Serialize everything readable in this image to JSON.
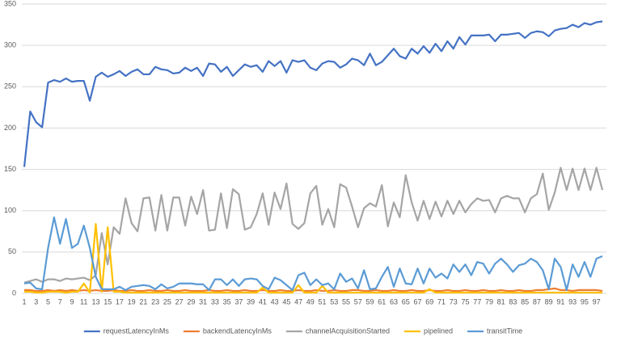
{
  "chart_data": {
    "type": "line",
    "categories": [
      1,
      null,
      3,
      null,
      5,
      null,
      7,
      null,
      9,
      null,
      11,
      null,
      13,
      null,
      15,
      null,
      17,
      null,
      19,
      null,
      21,
      null,
      23,
      null,
      25,
      null,
      27,
      null,
      29,
      null,
      31,
      null,
      33,
      null,
      35,
      null,
      37,
      null,
      39,
      null,
      41,
      null,
      43,
      null,
      45,
      null,
      47,
      null,
      49,
      null,
      51,
      null,
      53,
      null,
      55,
      null,
      57,
      null,
      59,
      null,
      61,
      null,
      63,
      null,
      65,
      null,
      67,
      null,
      69,
      null,
      71,
      null,
      73,
      null,
      75,
      null,
      77,
      null,
      79,
      null,
      81,
      null,
      83,
      null,
      85,
      null,
      87,
      null,
      89,
      null,
      91,
      null,
      93,
      null,
      95,
      null,
      97,
      null
    ],
    "ylim": [
      0,
      350
    ],
    "yticks": [
      0,
      50,
      100,
      150,
      200,
      250,
      300,
      350
    ],
    "grid": true,
    "legend": "bottom",
    "series": [
      {
        "name": "requestLatencyInMs",
        "color": "#4472c4",
        "values": [
          153,
          220,
          207,
          201,
          255,
          258,
          256,
          260,
          256,
          257,
          257,
          233,
          262,
          267,
          262,
          265,
          269,
          263,
          268,
          271,
          265,
          265,
          274,
          271,
          270,
          266,
          267,
          273,
          269,
          273,
          263,
          278,
          277,
          268,
          274,
          263,
          270,
          277,
          274,
          276,
          268,
          281,
          275,
          281,
          267,
          282,
          280,
          282,
          273,
          270,
          278,
          281,
          280,
          273,
          277,
          284,
          282,
          276,
          290,
          276,
          280,
          288,
          296,
          287,
          284,
          296,
          290,
          299,
          291,
          302,
          293,
          305,
          296,
          310,
          301,
          312,
          312,
          312,
          313,
          305,
          313,
          313,
          314,
          315,
          309,
          315,
          317,
          316,
          311,
          318,
          320,
          321,
          325,
          322,
          327,
          325,
          328,
          329
        ]
      },
      {
        "name": "backendLatencyInMs",
        "color": "#ed7d31",
        "values": [
          4,
          4,
          3,
          3,
          4,
          3,
          4,
          3,
          4,
          3,
          4,
          3,
          4,
          3,
          3,
          4,
          3,
          3,
          4,
          3,
          3,
          4,
          3,
          3,
          4,
          3,
          3,
          4,
          3,
          3,
          3,
          4,
          3,
          3,
          4,
          3,
          3,
          4,
          3,
          3,
          4,
          3,
          3,
          4,
          3,
          3,
          4,
          3,
          3,
          4,
          3,
          3,
          4,
          3,
          3,
          4,
          4,
          3,
          3,
          4,
          3,
          3,
          4,
          3,
          3,
          4,
          3,
          3,
          4,
          3,
          3,
          4,
          3,
          3,
          4,
          3,
          3,
          4,
          3,
          3,
          4,
          3,
          3,
          4,
          3,
          3,
          4,
          4,
          5,
          6,
          4,
          4,
          3,
          4,
          4,
          4,
          4,
          3
        ]
      },
      {
        "name": "channelAcquisitionStarted",
        "color": "#a5a5a5",
        "values": [
          13,
          15,
          17,
          14,
          17,
          17,
          15,
          18,
          17,
          18,
          19,
          16,
          22,
          73,
          35,
          80,
          72,
          115,
          85,
          75,
          115,
          116,
          76,
          119,
          76,
          116,
          116,
          82,
          117,
          96,
          125,
          76,
          77,
          121,
          79,
          126,
          120,
          77,
          80,
          96,
          121,
          83,
          122,
          102,
          133,
          84,
          78,
          85,
          121,
          130,
          83,
          102,
          80,
          132,
          128,
          105,
          80,
          103,
          109,
          105,
          131,
          81,
          110,
          92,
          143,
          110,
          88,
          112,
          90,
          111,
          93,
          112,
          96,
          112,
          98,
          108,
          115,
          112,
          113,
          98,
          115,
          118,
          115,
          115,
          98,
          115,
          120,
          145,
          101,
          122,
          152,
          125,
          151,
          125,
          151,
          125,
          152,
          125
        ]
      },
      {
        "name": "pipelined",
        "color": "#ffc000",
        "values": [
          2,
          2,
          1,
          1,
          2,
          2,
          2,
          1,
          2,
          2,
          12,
          1,
          84,
          2,
          80,
          2,
          2,
          1,
          1,
          1,
          1,
          1,
          1,
          1,
          1,
          1,
          1,
          1,
          1,
          1,
          1,
          1,
          1,
          1,
          1,
          1,
          1,
          1,
          1,
          1,
          7,
          1,
          1,
          1,
          1,
          1,
          10,
          1,
          1,
          1,
          9,
          1,
          1,
          1,
          1,
          1,
          1,
          1,
          1,
          1,
          1,
          1,
          1,
          1,
          1,
          1,
          1,
          1,
          5,
          1,
          1,
          1,
          1,
          1,
          1,
          1,
          1,
          1,
          1,
          1,
          1,
          1,
          1,
          1,
          1,
          1,
          1,
          1,
          1,
          1,
          1,
          1,
          1,
          1,
          1,
          1,
          1,
          1
        ]
      },
      {
        "name": "transitTime",
        "color": "#5b9bd5",
        "values": [
          12,
          13,
          6,
          5,
          55,
          92,
          60,
          90,
          55,
          60,
          82,
          55,
          20,
          5,
          5,
          5,
          8,
          4,
          8,
          9,
          10,
          9,
          5,
          11,
          6,
          8,
          12,
          12,
          12,
          11,
          11,
          4,
          17,
          17,
          10,
          17,
          9,
          17,
          18,
          17,
          9,
          5,
          19,
          16,
          10,
          4,
          22,
          25,
          10,
          17,
          10,
          12,
          5,
          24,
          14,
          18,
          6,
          28,
          5,
          6,
          20,
          32,
          8,
          30,
          12,
          11,
          30,
          12,
          30,
          19,
          24,
          18,
          35,
          26,
          35,
          22,
          38,
          36,
          24,
          36,
          42,
          35,
          26,
          34,
          36,
          42,
          38,
          28,
          5,
          42,
          32,
          4,
          35,
          20,
          38,
          20,
          42,
          45
        ]
      }
    ]
  }
}
